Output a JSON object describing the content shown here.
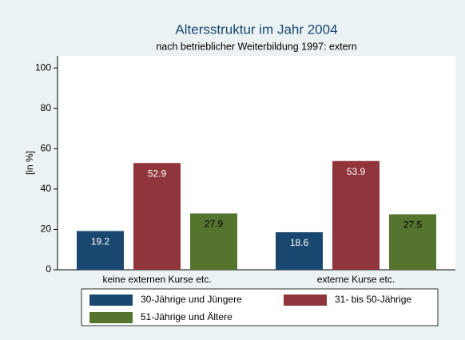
{
  "chart_data": {
    "type": "bar",
    "title": "Altersstruktur im Jahr 2004",
    "subtitle": "nach betrieblicher Weiterbildung 1997: extern",
    "y_label": "[in %]",
    "categories": [
      "keine externen Kurse etc.",
      "externe Kurse etc."
    ],
    "series": [
      {
        "name": "30-Jährige und Jüngere",
        "color": "#1a476f",
        "values": [
          19.2,
          18.6
        ]
      },
      {
        "name": "31- bis 50-Jährige",
        "color": "#90353b",
        "values": [
          52.9,
          53.9
        ]
      },
      {
        "name": "51-Jährige und Ältere",
        "color": "#55752f",
        "values": [
          27.9,
          27.5
        ]
      }
    ],
    "ylim": [
      0,
      106
    ],
    "yticks": [
      0,
      20,
      40,
      60,
      80,
      100
    ],
    "grid": false,
    "legend": "bottom"
  }
}
